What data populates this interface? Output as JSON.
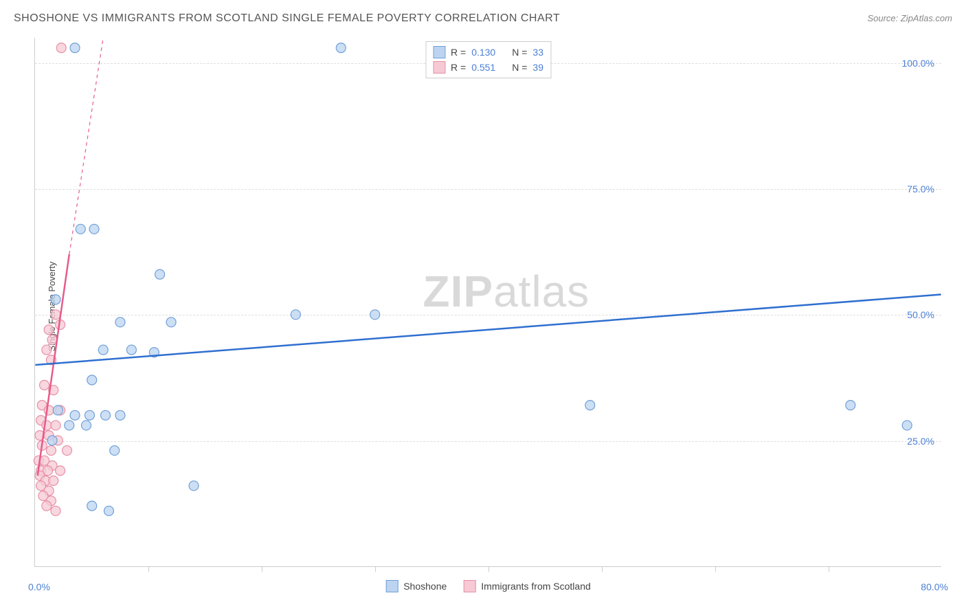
{
  "header": {
    "title": "SHOSHONE VS IMMIGRANTS FROM SCOTLAND SINGLE FEMALE POVERTY CORRELATION CHART",
    "source_prefix": "Source: ",
    "source_name": "ZipAtlas.com"
  },
  "chart": {
    "type": "scatter",
    "ylabel": "Single Female Poverty",
    "xlim": [
      0,
      80
    ],
    "ylim": [
      0,
      105
    ],
    "xlim_labels": {
      "min": "0.0%",
      "max": "80.0%"
    },
    "ytick_positions": [
      25,
      50,
      75,
      100
    ],
    "ytick_labels": [
      "25.0%",
      "50.0%",
      "75.0%",
      "100.0%"
    ],
    "xtick_positions": [
      10,
      20,
      30,
      40,
      50,
      60,
      70
    ],
    "grid_color": "#dddddd",
    "axis_color": "#cccccc",
    "background_color": "#ffffff",
    "marker_radius": 7,
    "marker_stroke_width": 1.2,
    "watermark": "ZIPatlas",
    "series": {
      "shoshone": {
        "label": "Shoshone",
        "fill_color": "#bcd4f0",
        "stroke_color": "#6f9fd8",
        "R": "0.130",
        "N": "33",
        "points": [
          [
            3.5,
            103
          ],
          [
            27,
            103
          ],
          [
            42,
            103
          ],
          [
            4,
            67
          ],
          [
            5.2,
            67
          ],
          [
            11,
            58
          ],
          [
            1.8,
            53
          ],
          [
            23,
            50
          ],
          [
            30,
            50
          ],
          [
            7.5,
            48.5
          ],
          [
            12,
            48.5
          ],
          [
            6,
            43
          ],
          [
            8.5,
            43
          ],
          [
            10.5,
            42.5
          ],
          [
            49,
            32
          ],
          [
            5,
            37
          ],
          [
            72,
            32
          ],
          [
            2,
            31
          ],
          [
            3.5,
            30
          ],
          [
            4.8,
            30
          ],
          [
            6.2,
            30
          ],
          [
            7.5,
            30
          ],
          [
            3,
            28
          ],
          [
            4.5,
            28
          ],
          [
            77,
            28
          ],
          [
            1.5,
            25
          ],
          [
            7,
            23
          ],
          [
            14,
            16
          ],
          [
            5,
            12
          ],
          [
            6.5,
            11
          ]
        ],
        "trendline": {
          "x1": 0,
          "y1": 40,
          "x2": 80,
          "y2": 54,
          "color": "#2f6fd0",
          "width": 2.5,
          "dash": "none"
        }
      },
      "scotland": {
        "label": "Immigrants from Scotland",
        "fill_color": "#f6c9d4",
        "stroke_color": "#e78fa6",
        "R": "0.551",
        "N": "39",
        "points": [
          [
            2.3,
            103
          ],
          [
            1.8,
            50
          ],
          [
            2.2,
            48
          ],
          [
            1.2,
            47
          ],
          [
            1.5,
            45
          ],
          [
            1.0,
            43
          ],
          [
            1.4,
            41
          ],
          [
            0.8,
            36
          ],
          [
            1.6,
            35
          ],
          [
            0.6,
            32
          ],
          [
            1.2,
            31
          ],
          [
            2.2,
            31
          ],
          [
            0.5,
            29
          ],
          [
            1.0,
            28
          ],
          [
            1.8,
            28
          ],
          [
            0.4,
            26
          ],
          [
            1.2,
            26
          ],
          [
            2.0,
            25
          ],
          [
            0.6,
            24
          ],
          [
            1.4,
            23
          ],
          [
            2.8,
            23
          ],
          [
            0.3,
            21
          ],
          [
            0.8,
            21
          ],
          [
            1.5,
            20
          ],
          [
            0.5,
            19
          ],
          [
            1.1,
            19
          ],
          [
            2.2,
            19
          ],
          [
            0.4,
            18
          ],
          [
            0.9,
            17
          ],
          [
            1.6,
            17
          ],
          [
            0.5,
            16
          ],
          [
            1.2,
            15
          ],
          [
            0.7,
            14
          ],
          [
            1.4,
            13
          ],
          [
            1.0,
            12
          ],
          [
            1.8,
            11
          ]
        ],
        "trendline_solid": {
          "x1": 0.2,
          "y1": 18,
          "x2": 3.0,
          "y2": 62,
          "color": "#e85a8a",
          "width": 2.5
        },
        "trendline_dash": {
          "x1": 3.0,
          "y1": 62,
          "x2": 6.0,
          "y2": 105,
          "color": "#e85a8a",
          "width": 1.2
        }
      }
    },
    "legend_top": {
      "r_prefix": "R =",
      "n_prefix": "N ="
    }
  }
}
